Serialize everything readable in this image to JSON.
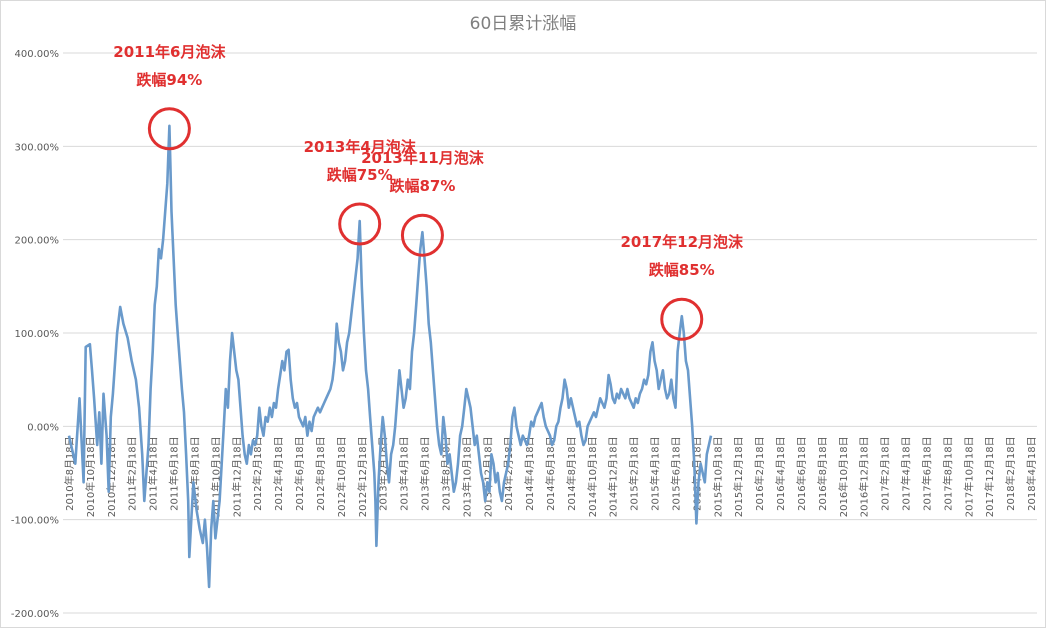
{
  "chart_data": {
    "type": "line",
    "title": "60日累计涨幅",
    "ylim": [
      -200,
      400
    ],
    "y_ticks": [
      "400.00%",
      "300.00%",
      "200.00%",
      "100.00%",
      "0.00%",
      "-100.00%",
      "-200.00%"
    ],
    "y_tick_values": [
      400,
      300,
      200,
      100,
      0,
      -100,
      -200
    ],
    "x_tick_labels": [
      "2010年8月18日",
      "2010年10月18日",
      "2010年12月18日",
      "2011年2月18日",
      "2011年4月18日",
      "2011年6月18日",
      "2011年8月18日",
      "2011年10月18日",
      "2011年12月18日",
      "2012年2月18日",
      "2012年4月18日",
      "2012年6月18日",
      "2012年8月18日",
      "2012年10月18日",
      "2012年12月18日",
      "2013年2月18日",
      "2013年4月18日",
      "2013年6月18日",
      "2013年8月18日",
      "2013年10月18日",
      "2013年12月18日",
      "2014年2月18日",
      "2014年4月18日",
      "2014年6月18日",
      "2014年8月18日",
      "2014年10月18日",
      "2014年12月18日",
      "2015年2月18日",
      "2015年4月18日",
      "2015年6月18日",
      "2015年8月18日",
      "2015年10月18日",
      "2015年12月18日",
      "2016年2月18日",
      "2016年4月18日",
      "2016年6月18日",
      "2016年8月18日",
      "2016年10月18日",
      "2016年12月18日",
      "2017年2月18日",
      "2017年4月18日",
      "2017年6月18日",
      "2017年8月18日",
      "2017年10月18日",
      "2017年12月18日",
      "2018年2月18日",
      "2018年4月18日"
    ],
    "series": [
      {
        "color": "#6a9acb",
        "points": [
          [
            0,
            -10
          ],
          [
            0.3,
            -40
          ],
          [
            0.5,
            30
          ],
          [
            0.7,
            -60
          ],
          [
            0.8,
            85
          ],
          [
            1.0,
            88
          ],
          [
            1.1,
            60
          ],
          [
            1.2,
            30
          ],
          [
            1.35,
            -20
          ],
          [
            1.45,
            15
          ],
          [
            1.55,
            -40
          ],
          [
            1.65,
            35
          ],
          [
            1.8,
            -10
          ],
          [
            1.9,
            -70
          ],
          [
            2.0,
            10
          ],
          [
            2.1,
            35
          ],
          [
            2.3,
            100
          ],
          [
            2.45,
            128
          ],
          [
            2.6,
            110
          ],
          [
            2.8,
            95
          ],
          [
            3.0,
            70
          ],
          [
            3.2,
            50
          ],
          [
            3.35,
            20
          ],
          [
            3.5,
            -30
          ],
          [
            3.6,
            -80
          ],
          [
            3.7,
            -50
          ],
          [
            3.8,
            -20
          ],
          [
            3.9,
            40
          ],
          [
            4.0,
            80
          ],
          [
            4.1,
            130
          ],
          [
            4.2,
            150
          ],
          [
            4.3,
            190
          ],
          [
            4.4,
            180
          ],
          [
            4.5,
            200
          ],
          [
            4.6,
            230
          ],
          [
            4.7,
            260
          ],
          [
            4.75,
            290
          ],
          [
            4.8,
            322
          ],
          [
            4.85,
            280
          ],
          [
            4.9,
            230
          ],
          [
            5.0,
            180
          ],
          [
            5.1,
            130
          ],
          [
            5.2,
            100
          ],
          [
            5.3,
            70
          ],
          [
            5.4,
            40
          ],
          [
            5.5,
            15
          ],
          [
            5.6,
            -30
          ],
          [
            5.7,
            -80
          ],
          [
            5.75,
            -140
          ],
          [
            5.85,
            -100
          ],
          [
            5.95,
            -60
          ],
          [
            6.1,
            -90
          ],
          [
            6.25,
            -110
          ],
          [
            6.4,
            -125
          ],
          [
            6.5,
            -100
          ],
          [
            6.6,
            -130
          ],
          [
            6.7,
            -172
          ],
          [
            6.8,
            -110
          ],
          [
            6.9,
            -80
          ],
          [
            7.0,
            -120
          ],
          [
            7.1,
            -100
          ],
          [
            7.2,
            -80
          ],
          [
            7.3,
            -40
          ],
          [
            7.4,
            0
          ],
          [
            7.5,
            40
          ],
          [
            7.6,
            20
          ],
          [
            7.7,
            70
          ],
          [
            7.8,
            100
          ],
          [
            7.9,
            80
          ],
          [
            8.0,
            60
          ],
          [
            8.1,
            50
          ],
          [
            8.2,
            20
          ],
          [
            8.3,
            -10
          ],
          [
            8.4,
            -30
          ],
          [
            8.5,
            -40
          ],
          [
            8.6,
            -20
          ],
          [
            8.7,
            -30
          ],
          [
            8.8,
            -15
          ],
          [
            8.9,
            -20
          ],
          [
            9.0,
            -10
          ],
          [
            9.1,
            20
          ],
          [
            9.2,
            0
          ],
          [
            9.3,
            -10
          ],
          [
            9.4,
            10
          ],
          [
            9.5,
            5
          ],
          [
            9.6,
            20
          ],
          [
            9.7,
            10
          ],
          [
            9.8,
            25
          ],
          [
            9.9,
            20
          ],
          [
            10.0,
            40
          ],
          [
            10.1,
            55
          ],
          [
            10.2,
            70
          ],
          [
            10.3,
            60
          ],
          [
            10.4,
            80
          ],
          [
            10.5,
            82
          ],
          [
            10.6,
            50
          ],
          [
            10.7,
            30
          ],
          [
            10.8,
            20
          ],
          [
            10.9,
            25
          ],
          [
            11.0,
            10
          ],
          [
            11.1,
            5
          ],
          [
            11.2,
            0
          ],
          [
            11.3,
            10
          ],
          [
            11.4,
            -10
          ],
          [
            11.5,
            5
          ],
          [
            11.6,
            -5
          ],
          [
            11.7,
            10
          ],
          [
            11.8,
            15
          ],
          [
            11.9,
            20
          ],
          [
            12.0,
            15
          ],
          [
            12.1,
            20
          ],
          [
            12.2,
            25
          ],
          [
            12.3,
            30
          ],
          [
            12.4,
            35
          ],
          [
            12.5,
            40
          ],
          [
            12.6,
            50
          ],
          [
            12.7,
            70
          ],
          [
            12.8,
            110
          ],
          [
            12.9,
            90
          ],
          [
            13.0,
            80
          ],
          [
            13.1,
            60
          ],
          [
            13.2,
            70
          ],
          [
            13.3,
            90
          ],
          [
            13.4,
            100
          ],
          [
            13.5,
            120
          ],
          [
            13.6,
            140
          ],
          [
            13.7,
            160
          ],
          [
            13.8,
            180
          ],
          [
            13.85,
            200
          ],
          [
            13.9,
            220
          ],
          [
            14.0,
            150
          ],
          [
            14.1,
            100
          ],
          [
            14.2,
            60
          ],
          [
            14.3,
            40
          ],
          [
            14.4,
            10
          ],
          [
            14.5,
            -20
          ],
          [
            14.6,
            -50
          ],
          [
            14.65,
            -80
          ],
          [
            14.7,
            -128
          ],
          [
            14.8,
            -60
          ],
          [
            14.9,
            -20
          ],
          [
            15.0,
            10
          ],
          [
            15.1,
            -10
          ],
          [
            15.2,
            -40
          ],
          [
            15.3,
            -60
          ],
          [
            15.4,
            -30
          ],
          [
            15.5,
            -20
          ],
          [
            15.6,
            0
          ],
          [
            15.7,
            30
          ],
          [
            15.8,
            60
          ],
          [
            15.9,
            40
          ],
          [
            16.0,
            20
          ],
          [
            16.1,
            30
          ],
          [
            16.2,
            50
          ],
          [
            16.3,
            40
          ],
          [
            16.4,
            80
          ],
          [
            16.5,
            100
          ],
          [
            16.6,
            130
          ],
          [
            16.7,
            160
          ],
          [
            16.8,
            190
          ],
          [
            16.9,
            208
          ],
          [
            17.0,
            180
          ],
          [
            17.1,
            150
          ],
          [
            17.2,
            110
          ],
          [
            17.3,
            90
          ],
          [
            17.4,
            60
          ],
          [
            17.5,
            30
          ],
          [
            17.6,
            0
          ],
          [
            17.7,
            -20
          ],
          [
            17.8,
            -30
          ],
          [
            17.9,
            10
          ],
          [
            18.0,
            -10
          ],
          [
            18.1,
            -40
          ],
          [
            18.2,
            -30
          ],
          [
            18.3,
            -50
          ],
          [
            18.4,
            -70
          ],
          [
            18.5,
            -60
          ],
          [
            18.6,
            -40
          ],
          [
            18.7,
            -10
          ],
          [
            18.8,
            0
          ],
          [
            18.9,
            20
          ],
          [
            19.0,
            40
          ],
          [
            19.1,
            30
          ],
          [
            19.2,
            20
          ],
          [
            19.3,
            0
          ],
          [
            19.4,
            -20
          ],
          [
            19.5,
            -10
          ],
          [
            19.6,
            -30
          ],
          [
            19.7,
            -50
          ],
          [
            19.8,
            -60
          ],
          [
            19.9,
            -80
          ],
          [
            20.0,
            -60
          ],
          [
            20.1,
            -70
          ],
          [
            20.2,
            -30
          ],
          [
            20.3,
            -40
          ],
          [
            20.4,
            -60
          ],
          [
            20.5,
            -50
          ],
          [
            20.6,
            -70
          ],
          [
            20.7,
            -80
          ],
          [
            20.8,
            -60
          ],
          [
            20.9,
            -50
          ],
          [
            21.0,
            -40
          ],
          [
            21.1,
            -20
          ],
          [
            21.2,
            10
          ],
          [
            21.3,
            20
          ],
          [
            21.4,
            0
          ],
          [
            21.5,
            -10
          ],
          [
            21.6,
            -20
          ],
          [
            21.7,
            -10
          ],
          [
            21.8,
            -15
          ],
          [
            21.9,
            -20
          ],
          [
            22.0,
            -10
          ],
          [
            22.1,
            5
          ],
          [
            22.2,
            0
          ],
          [
            22.3,
            10
          ],
          [
            22.4,
            15
          ],
          [
            22.5,
            20
          ],
          [
            22.6,
            25
          ],
          [
            22.7,
            10
          ],
          [
            22.8,
            0
          ],
          [
            22.9,
            -5
          ],
          [
            23.0,
            -10
          ],
          [
            23.1,
            -20
          ],
          [
            23.2,
            -15
          ],
          [
            23.3,
            0
          ],
          [
            23.4,
            5
          ],
          [
            23.5,
            20
          ],
          [
            23.6,
            30
          ],
          [
            23.7,
            50
          ],
          [
            23.8,
            40
          ],
          [
            23.9,
            20
          ],
          [
            24.0,
            30
          ],
          [
            24.1,
            20
          ],
          [
            24.2,
            10
          ],
          [
            24.3,
            0
          ],
          [
            24.4,
            5
          ],
          [
            24.5,
            -10
          ],
          [
            24.6,
            -20
          ],
          [
            24.7,
            -15
          ],
          [
            24.8,
            0
          ],
          [
            24.9,
            5
          ],
          [
            25.0,
            10
          ],
          [
            25.1,
            15
          ],
          [
            25.2,
            10
          ],
          [
            25.3,
            20
          ],
          [
            25.4,
            30
          ],
          [
            25.5,
            25
          ],
          [
            25.6,
            20
          ],
          [
            25.7,
            30
          ],
          [
            25.8,
            55
          ],
          [
            25.9,
            45
          ],
          [
            26.0,
            30
          ],
          [
            26.1,
            25
          ],
          [
            26.2,
            35
          ],
          [
            26.3,
            30
          ],
          [
            26.4,
            40
          ],
          [
            26.5,
            35
          ],
          [
            26.6,
            30
          ],
          [
            26.7,
            40
          ],
          [
            26.8,
            30
          ],
          [
            26.9,
            25
          ],
          [
            27.0,
            20
          ],
          [
            27.1,
            30
          ],
          [
            27.2,
            25
          ],
          [
            27.3,
            35
          ],
          [
            27.4,
            40
          ],
          [
            27.5,
            50
          ],
          [
            27.6,
            45
          ],
          [
            27.7,
            55
          ],
          [
            27.8,
            80
          ],
          [
            27.9,
            90
          ],
          [
            28.0,
            70
          ],
          [
            28.1,
            60
          ],
          [
            28.2,
            40
          ],
          [
            28.3,
            50
          ],
          [
            28.4,
            60
          ],
          [
            28.5,
            40
          ],
          [
            28.6,
            30
          ],
          [
            28.7,
            35
          ],
          [
            28.8,
            50
          ],
          [
            28.9,
            30
          ],
          [
            29.0,
            20
          ],
          [
            29.1,
            80
          ],
          [
            29.2,
            100
          ],
          [
            29.3,
            118
          ],
          [
            29.4,
            100
          ],
          [
            29.5,
            70
          ],
          [
            29.6,
            60
          ],
          [
            29.7,
            30
          ],
          [
            29.8,
            0
          ],
          [
            29.9,
            -40
          ],
          [
            30.0,
            -104
          ],
          [
            30.1,
            -60
          ],
          [
            30.2,
            -40
          ],
          [
            30.3,
            -50
          ],
          [
            30.4,
            -60
          ],
          [
            30.5,
            -30
          ],
          [
            30.6,
            -20
          ],
          [
            30.7,
            -10
          ]
        ]
      }
    ],
    "annotations": [
      {
        "line1": "2011年6月泡沫",
        "line2": "跌幅94%",
        "x": 4.8,
        "y": 322
      },
      {
        "line1": "2013年4月泡沫",
        "line2": "跌幅75%",
        "x": 13.9,
        "y": 220
      },
      {
        "line1": "2013年11月泡沫",
        "line2": "跌幅87%",
        "x": 16.9,
        "y": 208
      },
      {
        "line1": "2017年12月泡沫",
        "line2": "跌幅85%",
        "x": 29.3,
        "y": 118
      }
    ],
    "annotation_color": "#e03030",
    "grid": true
  }
}
